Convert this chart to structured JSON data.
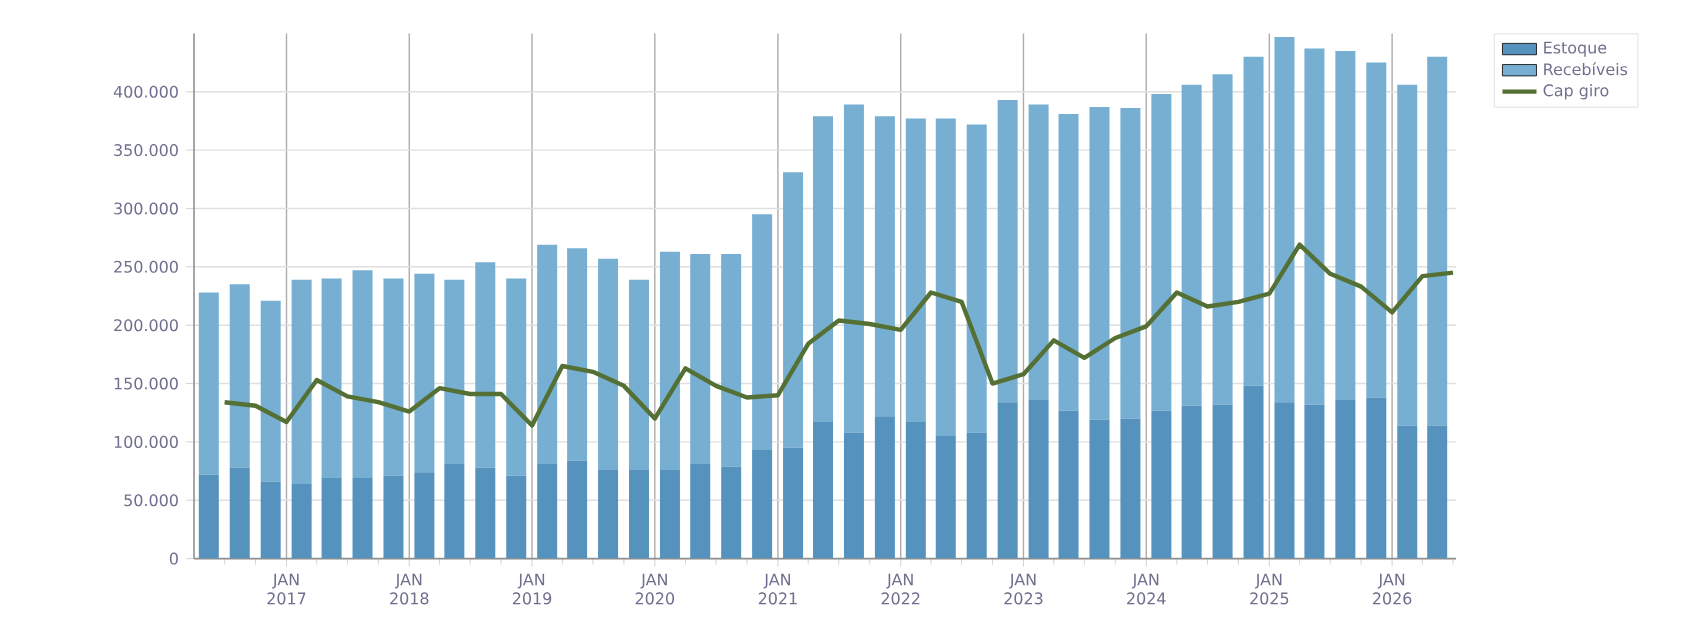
{
  "chart_data": {
    "type": "bar",
    "stacked": true,
    "grid": true,
    "legend": "top right",
    "xlim": [
      "2016-04-01",
      "2026-07-10"
    ],
    "ylim": [
      0,
      450000
    ],
    "yticks": [
      {
        "value": 0,
        "label": "0"
      },
      {
        "value": 50000,
        "label": "50.000"
      },
      {
        "value": 100000,
        "label": "100.000"
      },
      {
        "value": 150000,
        "label": "150.000"
      },
      {
        "value": 200000,
        "label": "200.000"
      },
      {
        "value": 250000,
        "label": "250.000"
      },
      {
        "value": 300000,
        "label": "300.000"
      },
      {
        "value": 350000,
        "label": "350.000"
      },
      {
        "value": 400000,
        "label": "400.000"
      }
    ],
    "xticks": [
      {
        "value": "2016-07-01",
        "label": null
      },
      {
        "value": "2016-10-01",
        "label": null
      },
      {
        "value": "2017-01-01",
        "label": "JAN 2017"
      },
      {
        "value": "2017-04-01",
        "label": null
      },
      {
        "value": "2017-07-01",
        "label": null
      },
      {
        "value": "2017-10-01",
        "label": null
      },
      {
        "value": "2018-01-01",
        "label": "JAN 2018"
      },
      {
        "value": "2018-04-01",
        "label": null
      },
      {
        "value": "2018-07-01",
        "label": null
      },
      {
        "value": "2018-10-01",
        "label": null
      },
      {
        "value": "2019-01-01",
        "label": "JAN 2019"
      },
      {
        "value": "2019-04-01",
        "label": null
      },
      {
        "value": "2019-07-01",
        "label": null
      },
      {
        "value": "2019-10-01",
        "label": null
      },
      {
        "value": "2020-01-01",
        "label": "JAN 2020"
      },
      {
        "value": "2020-04-01",
        "label": null
      },
      {
        "value": "2020-07-01",
        "label": null
      },
      {
        "value": "2020-10-01",
        "label": null
      },
      {
        "value": "2021-01-01",
        "label": "JAN 2021"
      },
      {
        "value": "2021-04-01",
        "label": null
      },
      {
        "value": "2021-07-01",
        "label": null
      },
      {
        "value": "2021-10-01",
        "label": null
      },
      {
        "value": "2022-01-01",
        "label": "JAN 2022"
      },
      {
        "value": "2022-04-01",
        "label": null
      },
      {
        "value": "2022-07-01",
        "label": null
      },
      {
        "value": "2022-10-01",
        "label": null
      },
      {
        "value": "2023-01-01",
        "label": "JAN 2023"
      },
      {
        "value": "2023-04-01",
        "label": null
      },
      {
        "value": "2023-07-01",
        "label": null
      },
      {
        "value": "2023-10-01",
        "label": null
      },
      {
        "value": "2024-01-01",
        "label": "JAN 2024"
      },
      {
        "value": "2024-04-01",
        "label": null
      },
      {
        "value": "2024-07-01",
        "label": null
      },
      {
        "value": "2024-10-01",
        "label": null
      },
      {
        "value": "2025-01-01",
        "label": "JAN 2025"
      },
      {
        "value": "2025-04-01",
        "label": null
      },
      {
        "value": "2025-07-01",
        "label": null
      },
      {
        "value": "2025-10-01",
        "label": null
      },
      {
        "value": "2026-01-01",
        "label": "JAN 2026"
      },
      {
        "value": "2026-04-01",
        "label": null
      },
      {
        "value": "2026-07-01",
        "label": null
      }
    ],
    "series": [
      {
        "name": "Estoque",
        "color": "#5592be",
        "x": [
          "2016-05-15",
          "2016-08-15",
          "2016-11-15",
          "2017-02-15",
          "2017-05-15",
          "2017-08-15",
          "2017-11-15",
          "2018-02-15",
          "2018-05-15",
          "2018-08-15",
          "2018-11-15",
          "2019-02-15",
          "2019-05-15",
          "2019-08-15",
          "2019-11-15",
          "2020-02-15",
          "2020-05-15",
          "2020-08-15",
          "2020-11-15",
          "2021-02-15",
          "2021-05-15",
          "2021-08-15",
          "2021-11-15",
          "2022-02-15",
          "2022-05-15",
          "2022-08-15",
          "2022-11-15",
          "2023-02-15",
          "2023-05-15",
          "2023-08-15",
          "2023-11-15",
          "2024-02-15",
          "2024-05-15",
          "2024-08-15",
          "2024-11-15",
          "2025-02-15",
          "2025-05-15",
          "2025-08-15",
          "2025-11-15",
          "2026-02-15",
          "2026-05-15"
        ],
        "values": [
          72000,
          78000,
          66000,
          64000,
          69000,
          69000,
          71000,
          74000,
          81000,
          78000,
          71000,
          81000,
          84000,
          76000,
          76000,
          76000,
          81000,
          79000,
          93000,
          95000,
          117000,
          108000,
          122000,
          117000,
          105000,
          108000,
          134000,
          136000,
          127000,
          119000,
          120000,
          127000,
          131000,
          132000,
          148000,
          134000,
          132000,
          136000,
          138000,
          114000,
          114000
        ]
      },
      {
        "name": "Recebíveis",
        "color": "#76afd2",
        "x": [
          "2016-05-15",
          "2016-08-15",
          "2016-11-15",
          "2017-02-15",
          "2017-05-15",
          "2017-08-15",
          "2017-11-15",
          "2018-02-15",
          "2018-05-15",
          "2018-08-15",
          "2018-11-15",
          "2019-02-15",
          "2019-05-15",
          "2019-08-15",
          "2019-11-15",
          "2020-02-15",
          "2020-05-15",
          "2020-08-15",
          "2020-11-15",
          "2021-02-15",
          "2021-05-15",
          "2021-08-15",
          "2021-11-15",
          "2022-02-15",
          "2022-05-15",
          "2022-08-15",
          "2022-11-15",
          "2023-02-15",
          "2023-05-15",
          "2023-08-15",
          "2023-11-15",
          "2024-02-15",
          "2024-05-15",
          "2024-08-15",
          "2024-11-15",
          "2025-02-15",
          "2025-05-15",
          "2025-08-15",
          "2025-11-15",
          "2026-02-15",
          "2026-05-15"
        ],
        "values": [
          156000,
          157000,
          155000,
          175000,
          171000,
          178000,
          169000,
          170000,
          158000,
          176000,
          169000,
          188000,
          182000,
          181000,
          163000,
          187000,
          180000,
          182000,
          202000,
          236000,
          262000,
          281000,
          257000,
          260000,
          272000,
          264000,
          259000,
          253000,
          254000,
          268000,
          266000,
          271000,
          275000,
          283000,
          282000,
          313000,
          305000,
          299000,
          287000,
          292000,
          316000
        ]
      },
      {
        "name": "Cap giro",
        "type": "line",
        "color": "#557035",
        "x": [
          "2016-07-01",
          "2016-10-01",
          "2017-01-01",
          "2017-04-01",
          "2017-07-01",
          "2017-10-01",
          "2018-01-01",
          "2018-04-01",
          "2018-07-01",
          "2018-10-01",
          "2019-01-01",
          "2019-04-01",
          "2019-07-01",
          "2019-10-01",
          "2020-01-01",
          "2020-04-01",
          "2020-07-01",
          "2020-10-01",
          "2021-01-01",
          "2021-04-01",
          "2021-07-01",
          "2021-10-01",
          "2022-01-01",
          "2022-04-01",
          "2022-07-01",
          "2022-10-01",
          "2023-01-01",
          "2023-04-01",
          "2023-07-01",
          "2023-10-01",
          "2024-01-01",
          "2024-04-01",
          "2024-07-01",
          "2024-10-01",
          "2025-01-01",
          "2025-04-01",
          "2025-07-01",
          "2025-10-01",
          "2026-01-01",
          "2026-04-01",
          "2026-07-01"
        ],
        "values": [
          134000,
          131000,
          117000,
          153000,
          139000,
          134000,
          126000,
          146000,
          141000,
          141000,
          114000,
          165000,
          160000,
          148000,
          120000,
          163000,
          148000,
          138000,
          140000,
          184000,
          204000,
          201000,
          196000,
          228000,
          220000,
          150000,
          158000,
          187000,
          172000,
          189000,
          199000,
          228000,
          216000,
          220000,
          227000,
          269000,
          244000,
          233000,
          211000,
          242000,
          245000
        ]
      }
    ]
  }
}
